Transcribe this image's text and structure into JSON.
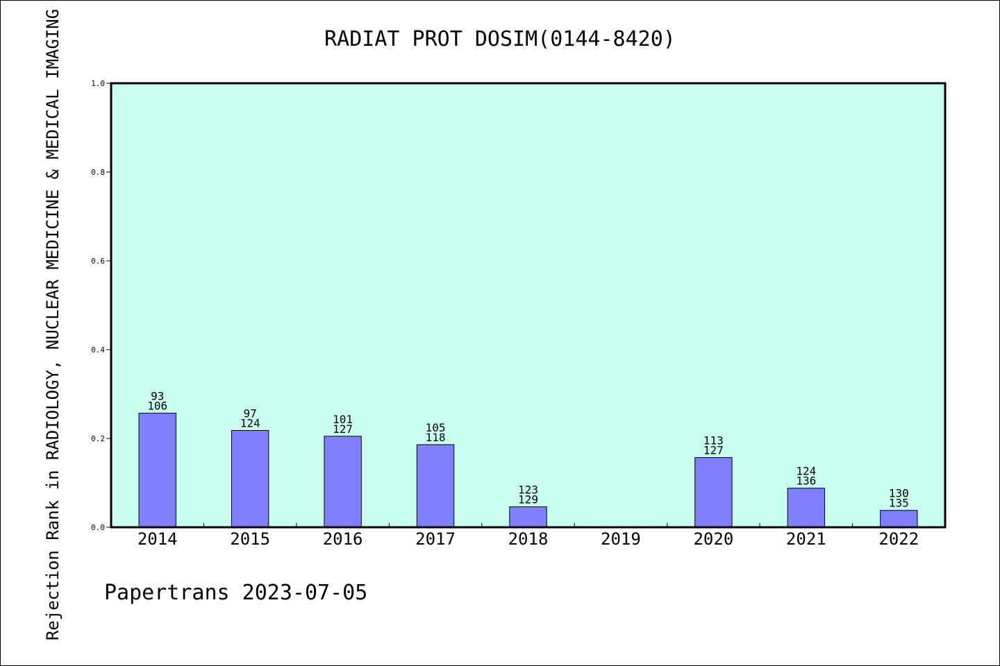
{
  "chart_data": {
    "type": "bar",
    "title": "RADIAT PROT DOSIM(0144-8420)",
    "ylabel": "Rejection Rank in RADIOLOGY, NUCLEAR MEDICINE & MEDICAL IMAGING",
    "xlabel": "",
    "footer": "Papertrans 2023-07-05",
    "ylim": [
      0,
      1.0
    ],
    "yticks": [
      "0.0",
      "0.2",
      "0.4",
      "0.6",
      "0.8",
      "1.0"
    ],
    "categories": [
      "2014",
      "2015",
      "2016",
      "2017",
      "2018",
      "2019",
      "2020",
      "2021",
      "2022"
    ],
    "values": [
      0.257,
      0.218,
      0.205,
      0.186,
      0.046,
      null,
      0.157,
      0.088,
      0.038
    ],
    "labels_top": [
      "93",
      "97",
      "101",
      "105",
      "123",
      "",
      "113",
      "124",
      "130"
    ],
    "labels_bottom": [
      "106",
      "124",
      "127",
      "118",
      "129",
      "",
      "127",
      "136",
      "135"
    ],
    "grid": false,
    "colors": {
      "plot_bg": "#c8fdef",
      "bar_fill": "#8080ff",
      "bar_stroke": "#000000",
      "axis": "#000000"
    }
  }
}
